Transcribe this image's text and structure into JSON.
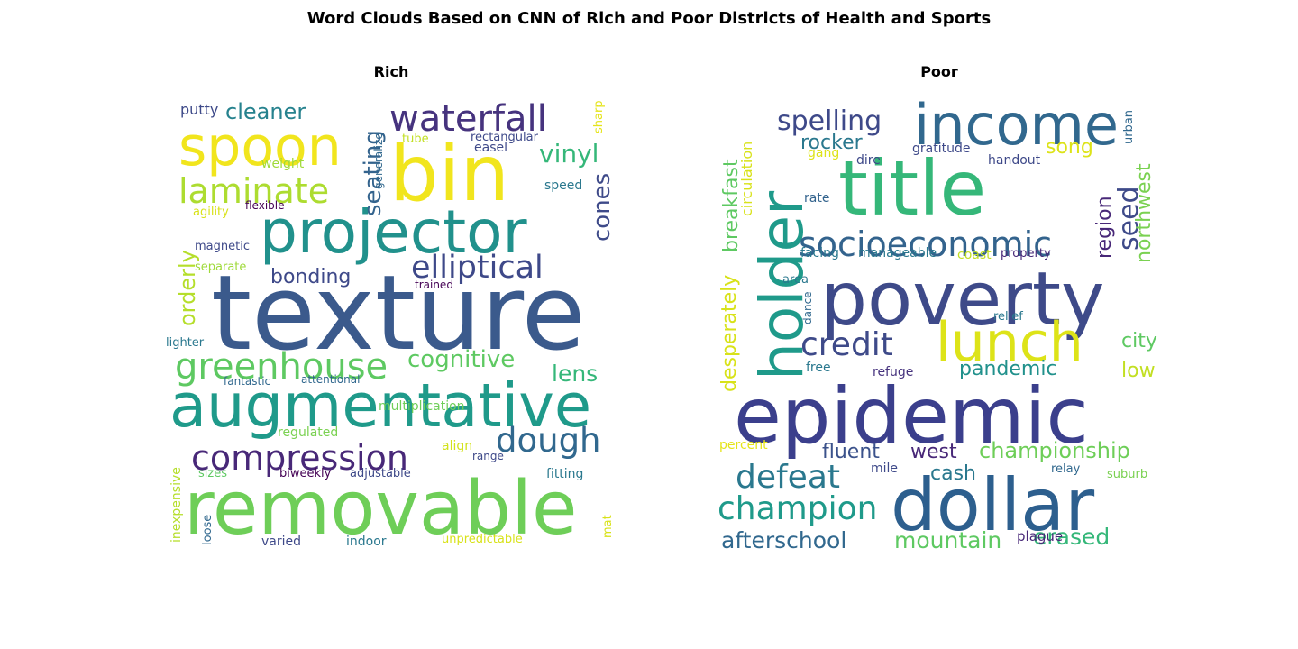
{
  "figure": {
    "title": "Word Clouds Based on CNN of Rich and Poor Districts of Health and Sports"
  },
  "chart_data": [
    {
      "type": "wordcloud",
      "title": "Rich",
      "words": [
        {
          "text": "texture",
          "color": "#3b5a8c"
        },
        {
          "text": "removable",
          "color": "#6ece58"
        },
        {
          "text": "augmentative",
          "color": "#1f9a8a"
        },
        {
          "text": "bin",
          "color": "#f1e51d"
        },
        {
          "text": "projector",
          "color": "#21918c"
        },
        {
          "text": "spoon",
          "color": "#f1e51d"
        },
        {
          "text": "waterfall",
          "color": "#46337e"
        },
        {
          "text": "compression",
          "color": "#482878"
        },
        {
          "text": "greenhouse",
          "color": "#5ec962"
        },
        {
          "text": "laminate",
          "color": "#addc30"
        },
        {
          "text": "elliptical",
          "color": "#3e4989"
        },
        {
          "text": "dough",
          "color": "#31688e"
        },
        {
          "text": "cleaner",
          "color": "#26828e"
        },
        {
          "text": "seating",
          "color": "#33638d"
        },
        {
          "text": "vinyl",
          "color": "#35b779"
        },
        {
          "text": "cones",
          "color": "#3e4a89"
        },
        {
          "text": "cognitive",
          "color": "#5ec962"
        },
        {
          "text": "bonding",
          "color": "#3e4989"
        },
        {
          "text": "orderly",
          "color": "#b5de2b"
        },
        {
          "text": "lens",
          "color": "#35b779"
        },
        {
          "text": "putty",
          "color": "#3e4a89"
        },
        {
          "text": "weight",
          "color": "#a0da39"
        },
        {
          "text": "generalize",
          "color": "#31688e"
        },
        {
          "text": "tube",
          "color": "#c2df23"
        },
        {
          "text": "rectangular",
          "color": "#3e4989"
        },
        {
          "text": "easel",
          "color": "#3e4989"
        },
        {
          "text": "sharp",
          "color": "#e5e419"
        },
        {
          "text": "speed",
          "color": "#2a788e"
        },
        {
          "text": "agility",
          "color": "#d8e219"
        },
        {
          "text": "flexible",
          "color": "#440154"
        },
        {
          "text": "magnetic",
          "color": "#3e4989"
        },
        {
          "text": "separate",
          "color": "#9fda3a"
        },
        {
          "text": "trained",
          "color": "#440154"
        },
        {
          "text": "lighter",
          "color": "#2a788e"
        },
        {
          "text": "fantastic",
          "color": "#31688e"
        },
        {
          "text": "attentional",
          "color": "#31688e"
        },
        {
          "text": "regulated",
          "color": "#7ad151"
        },
        {
          "text": "multiplication",
          "color": "#6ece58"
        },
        {
          "text": "align",
          "color": "#d2e21b"
        },
        {
          "text": "range",
          "color": "#3e4989"
        },
        {
          "text": "sizes",
          "color": "#5ec962"
        },
        {
          "text": "biweekly",
          "color": "#440154"
        },
        {
          "text": "adjustable",
          "color": "#3e4989"
        },
        {
          "text": "fitting",
          "color": "#2a788e"
        },
        {
          "text": "inexpensive",
          "color": "#b5de2b"
        },
        {
          "text": "loose",
          "color": "#31688e"
        },
        {
          "text": "varied",
          "color": "#3e4989"
        },
        {
          "text": "indoor",
          "color": "#2a788e"
        },
        {
          "text": "unpredictable",
          "color": "#d8e219"
        },
        {
          "text": "mat",
          "color": "#d8e219"
        }
      ]
    },
    {
      "type": "wordcloud",
      "title": "Poor",
      "words": [
        {
          "text": "epidemic",
          "color": "#3b3f8c"
        },
        {
          "text": "dollar",
          "color": "#2d5f8e"
        },
        {
          "text": "poverty",
          "color": "#3e4a89"
        },
        {
          "text": "title",
          "color": "#35b779"
        },
        {
          "text": "income",
          "color": "#31688e"
        },
        {
          "text": "holder",
          "color": "#1f9a8a"
        },
        {
          "text": "lunch",
          "color": "#dde318"
        },
        {
          "text": "socioeconomic",
          "color": "#33638d"
        },
        {
          "text": "champion",
          "color": "#1f9a8a"
        },
        {
          "text": "defeat",
          "color": "#2a788e"
        },
        {
          "text": "credit",
          "color": "#3e4a89"
        },
        {
          "text": "spelling",
          "color": "#3e4989"
        },
        {
          "text": "championship",
          "color": "#6ece58"
        },
        {
          "text": "afterschool",
          "color": "#31688e"
        },
        {
          "text": "mountain",
          "color": "#5ec962"
        },
        {
          "text": "erased",
          "color": "#35b779"
        },
        {
          "text": "desperately",
          "color": "#d8e219"
        },
        {
          "text": "breakfast",
          "color": "#5ec962"
        },
        {
          "text": "seed",
          "color": "#3e4a89"
        },
        {
          "text": "rocker",
          "color": "#2a788e"
        },
        {
          "text": "song",
          "color": "#dde318"
        },
        {
          "text": "fluent",
          "color": "#3b528b"
        },
        {
          "text": "west",
          "color": "#482878"
        },
        {
          "text": "cash",
          "color": "#2a788e"
        },
        {
          "text": "pandemic",
          "color": "#21918c"
        },
        {
          "text": "region",
          "color": "#482878"
        },
        {
          "text": "northwest",
          "color": "#7ad151"
        },
        {
          "text": "city",
          "color": "#5ec962"
        },
        {
          "text": "low",
          "color": "#c2df23"
        },
        {
          "text": "circulation",
          "color": "#d8e219"
        },
        {
          "text": "gratitude",
          "color": "#3e4989"
        },
        {
          "text": "gang",
          "color": "#dde318"
        },
        {
          "text": "dire",
          "color": "#3e4989"
        },
        {
          "text": "handout",
          "color": "#3e4989"
        },
        {
          "text": "urban",
          "color": "#31688e"
        },
        {
          "text": "rate",
          "color": "#33638d"
        },
        {
          "text": "facing",
          "color": "#2a788e"
        },
        {
          "text": "manageable",
          "color": "#2a788e"
        },
        {
          "text": "coast",
          "color": "#c2df23"
        },
        {
          "text": "property",
          "color": "#482878"
        },
        {
          "text": "area",
          "color": "#2a788e"
        },
        {
          "text": "dance",
          "color": "#31688e"
        },
        {
          "text": "relief",
          "color": "#2a788e"
        },
        {
          "text": "free",
          "color": "#2a788e"
        },
        {
          "text": "refuge",
          "color": "#46337e"
        },
        {
          "text": "percent",
          "color": "#e5e419"
        },
        {
          "text": "mile",
          "color": "#3e4989"
        },
        {
          "text": "relay",
          "color": "#31688e"
        },
        {
          "text": "suburb",
          "color": "#7ad151"
        },
        {
          "text": "plague",
          "color": "#482878"
        }
      ]
    }
  ]
}
